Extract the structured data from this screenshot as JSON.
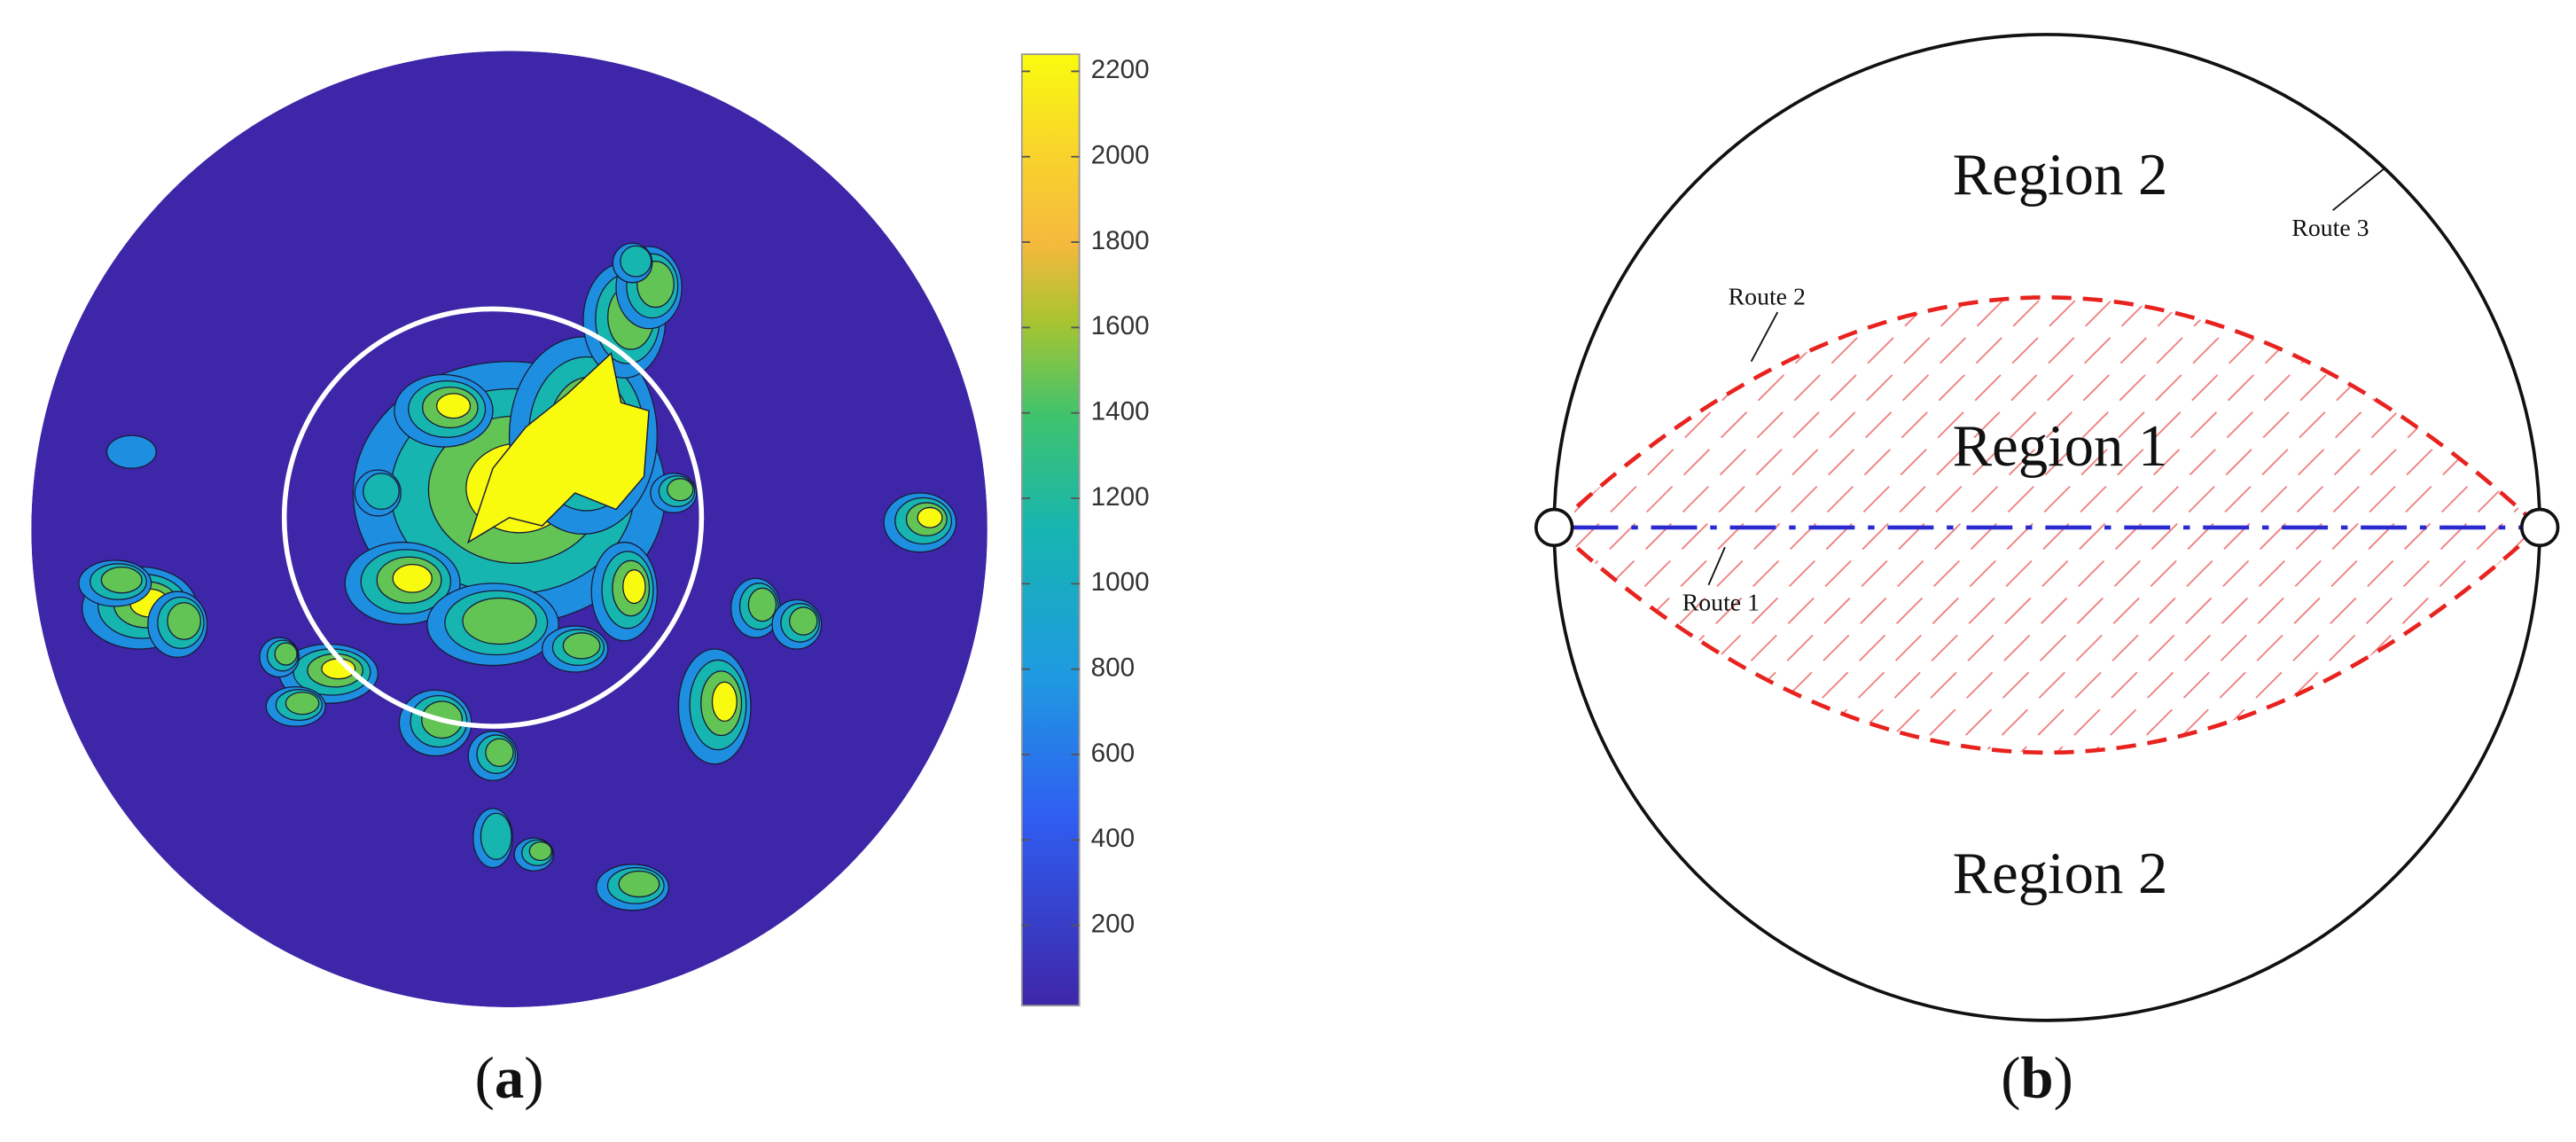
{
  "panel_a": {
    "label": [
      "(",
      "a",
      ")"
    ],
    "colorbar": {
      "lim": [
        12,
        2240
      ],
      "ticks": [
        200,
        400,
        600,
        800,
        1000,
        1200,
        1400,
        1600,
        1800,
        2000,
        2200
      ]
    }
  },
  "panel_b": {
    "label": [
      "(",
      "b",
      ")"
    ],
    "regions": [
      "Region 2",
      "Region 1",
      "Region 2"
    ],
    "routes": [
      "Route 1",
      "Route 2",
      "Route 3"
    ]
  }
}
